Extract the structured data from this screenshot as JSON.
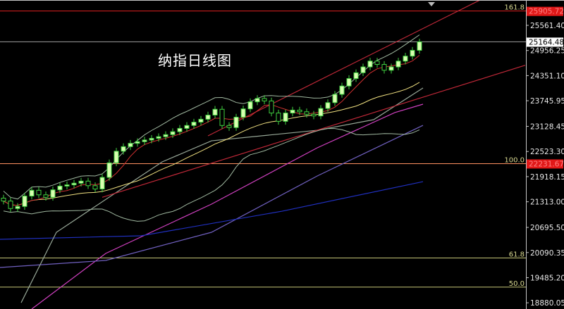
{
  "title": "纳指日线图",
  "chart_data": {
    "type": "candlestick",
    "title": "纳指日线图",
    "y_ticks": [
      "25561.40",
      "24956.25",
      "24351.10",
      "23745.95",
      "23128.45",
      "22523.30",
      "21918.15",
      "21313.00",
      "20695.50",
      "20090.35",
      "19485.20",
      "18880.05"
    ],
    "ylim": [
      18800,
      26500
    ],
    "grid": false,
    "current_price": {
      "value": 25164.48,
      "label": "25164.48"
    },
    "fib_levels": [
      {
        "ratio": "161.8",
        "value": 25905.72,
        "label": "25905.72",
        "color": "#e02020"
      },
      {
        "ratio": "100.0",
        "value": 22231.67,
        "label": "22231.67",
        "color": "#ff9060"
      },
      {
        "ratio": "61.8",
        "value": 19960,
        "color": "#c8c878"
      },
      {
        "ratio": "50.0",
        "value": 19259,
        "color": "#c8c878"
      }
    ],
    "candles": {
      "open": [
        21400,
        21330,
        21150,
        21200,
        21450,
        21590,
        21480,
        21420,
        21600,
        21690,
        21720,
        21760,
        21810,
        21700,
        21620,
        21900,
        22250,
        22530,
        22640,
        22720,
        22760,
        22800,
        22840,
        22880,
        22930,
        23000,
        23080,
        23150,
        23230,
        23300,
        23400,
        23540,
        23150,
        23100,
        23350,
        23550,
        23720,
        23800,
        23740,
        23450,
        23250,
        23450,
        23520,
        23480,
        23420,
        23380,
        23560,
        23700,
        23900,
        24100,
        24280,
        24420,
        24560,
        24700,
        24620,
        24480,
        24560,
        24700,
        24820,
        24960
      ],
      "high": [
        21480,
        21410,
        21280,
        21530,
        21670,
        21670,
        21560,
        21680,
        21770,
        21800,
        21840,
        21890,
        21890,
        21780,
        21980,
        22330,
        22610,
        22720,
        22800,
        22840,
        22880,
        22920,
        22960,
        23010,
        23080,
        23160,
        23230,
        23310,
        23380,
        23480,
        23620,
        23620,
        23230,
        23430,
        23630,
        23800,
        23880,
        23880,
        23820,
        23530,
        23530,
        23600,
        23600,
        23560,
        23500,
        23640,
        23780,
        23980,
        24180,
        24360,
        24500,
        24640,
        24780,
        24780,
        24700,
        24640,
        24780,
        24900,
        25040,
        25240
      ],
      "low": [
        21250,
        21070,
        21070,
        21120,
        21370,
        21400,
        21340,
        21340,
        21520,
        21610,
        21640,
        21680,
        21620,
        21540,
        21540,
        21820,
        22170,
        22450,
        22560,
        22640,
        22680,
        22720,
        22760,
        22800,
        22850,
        22920,
        23000,
        23070,
        23150,
        23220,
        23320,
        23070,
        23020,
        23020,
        23270,
        23470,
        23640,
        23660,
        23370,
        23170,
        23170,
        23370,
        23400,
        23340,
        23300,
        23300,
        23480,
        23620,
        23820,
        24020,
        24200,
        24340,
        24480,
        24540,
        24400,
        24400,
        24480,
        24620,
        24740,
        24880
      ],
      "close": [
        21330,
        21150,
        21200,
        21450,
        21590,
        21480,
        21420,
        21600,
        21690,
        21720,
        21760,
        21810,
        21700,
        21620,
        21900,
        22250,
        22530,
        22640,
        22720,
        22760,
        22800,
        22840,
        22880,
        22930,
        23000,
        23080,
        23150,
        23230,
        23300,
        23400,
        23540,
        23150,
        23100,
        23350,
        23550,
        23720,
        23800,
        23740,
        23450,
        23250,
        23450,
        23520,
        23480,
        23420,
        23380,
        23560,
        23700,
        23900,
        24100,
        24280,
        24420,
        24560,
        24700,
        24620,
        24480,
        24560,
        24700,
        24820,
        24960,
        25164
      ]
    },
    "moving_averages": [
      {
        "color": "#d040c0",
        "points": [
          [
            4,
            18730
          ],
          [
            14.5,
            20070
          ],
          [
            29.5,
            21256
          ],
          [
            44.5,
            22612
          ],
          [
            55.5,
            23460
          ],
          [
            59.5,
            23663
          ]
        ]
      },
      {
        "color": "#7060c0",
        "points": [
          [
            -0.5,
            19730
          ],
          [
            14.5,
            19900
          ],
          [
            29.5,
            20578
          ],
          [
            44.5,
            21934
          ],
          [
            59.5,
            23154
          ]
        ]
      },
      {
        "color": "#2030c0",
        "points": [
          [
            -0.5,
            20409
          ],
          [
            19.5,
            20493
          ],
          [
            39.5,
            21086
          ],
          [
            59.5,
            21798
          ]
        ]
      },
      {
        "color": "#98a898",
        "points": [
          [
            2.5,
            18882
          ],
          [
            7.5,
            20578
          ],
          [
            22.5,
            22273
          ],
          [
            29.5,
            22781
          ],
          [
            44.5,
            23035
          ],
          [
            52.5,
            23290
          ],
          [
            59.5,
            24053
          ]
        ]
      }
    ],
    "trendlines": [
      {
        "color": "#c02838",
        "points": [
          [
            14,
            21420
          ],
          [
            74,
            24600
          ]
        ]
      },
      {
        "color": "#c02838",
        "points": [
          [
            29,
            22900
          ],
          [
            71,
            26460
          ]
        ]
      }
    ]
  },
  "colors": {
    "bull_body": "#d8ffb0",
    "bear_body": "#000000",
    "wick": "#40d040",
    "band": "#a0b8a0",
    "mid": "#f0e080",
    "fast": "#d03030"
  }
}
